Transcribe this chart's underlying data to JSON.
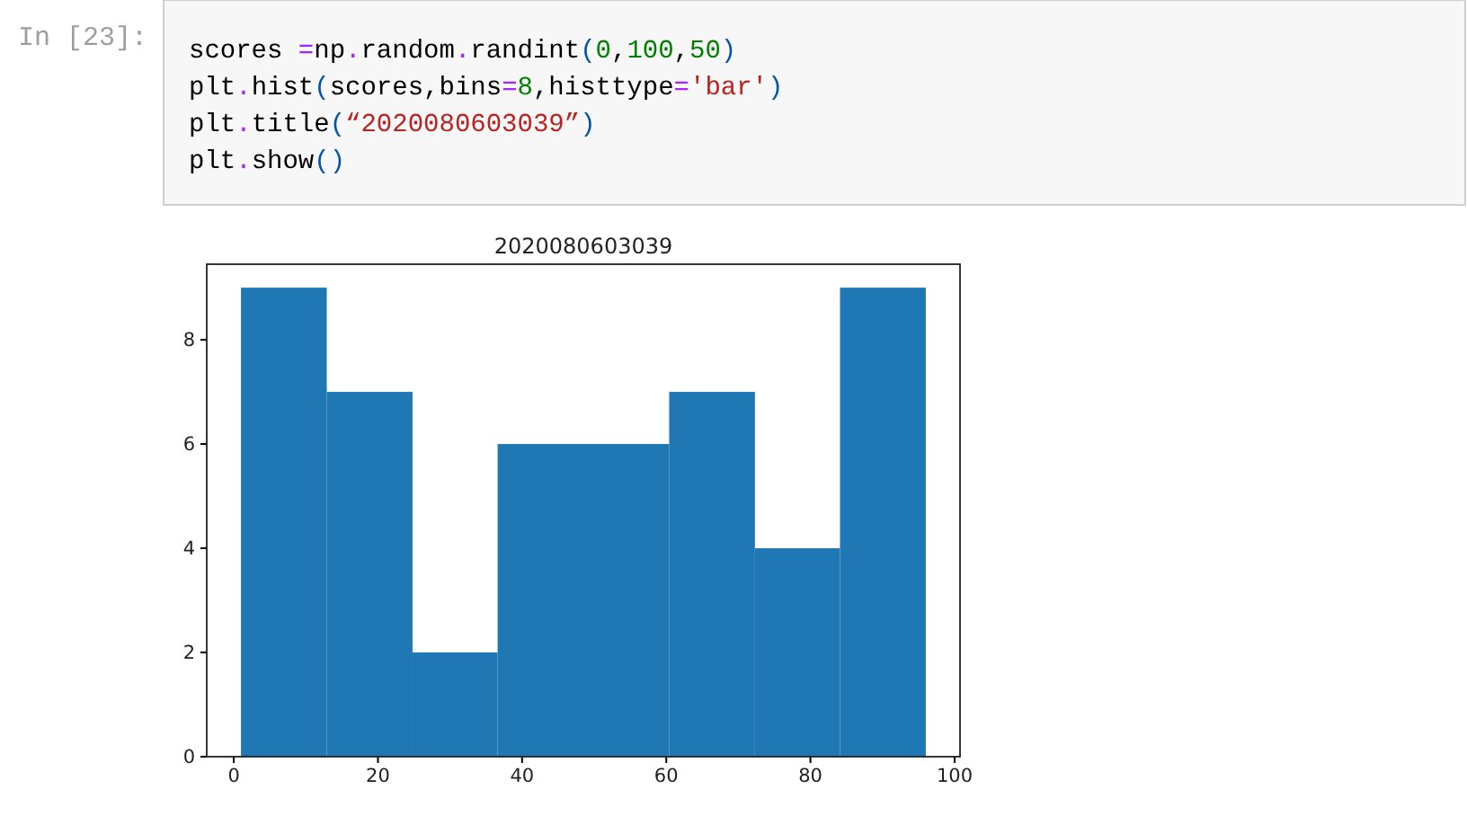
{
  "chart_data": {
    "type": "histogram",
    "title": "2020080603039",
    "annotations": [
      "In [23]:",
      "scores =np.random.randint(0,100,50)",
      "plt.hist(scores,bins=8,histtype='bar')",
      "plt.title(“2020080603039”)",
      "plt.show()"
    ],
    "bins": [
      1,
      12.9,
      24.8,
      36.6,
      48.5,
      60.4,
      72.3,
      84.1,
      96
    ],
    "values": [
      9,
      7,
      2,
      6,
      6,
      7,
      4,
      9
    ],
    "color": "#1f77b4",
    "xlim": [
      -3.75,
      100.75
    ],
    "ylim": [
      0,
      9.45
    ],
    "xticks": [
      0,
      20,
      40,
      60,
      80,
      100
    ],
    "yticks": [
      0,
      2,
      4,
      6,
      8
    ],
    "grid": false
  }
}
